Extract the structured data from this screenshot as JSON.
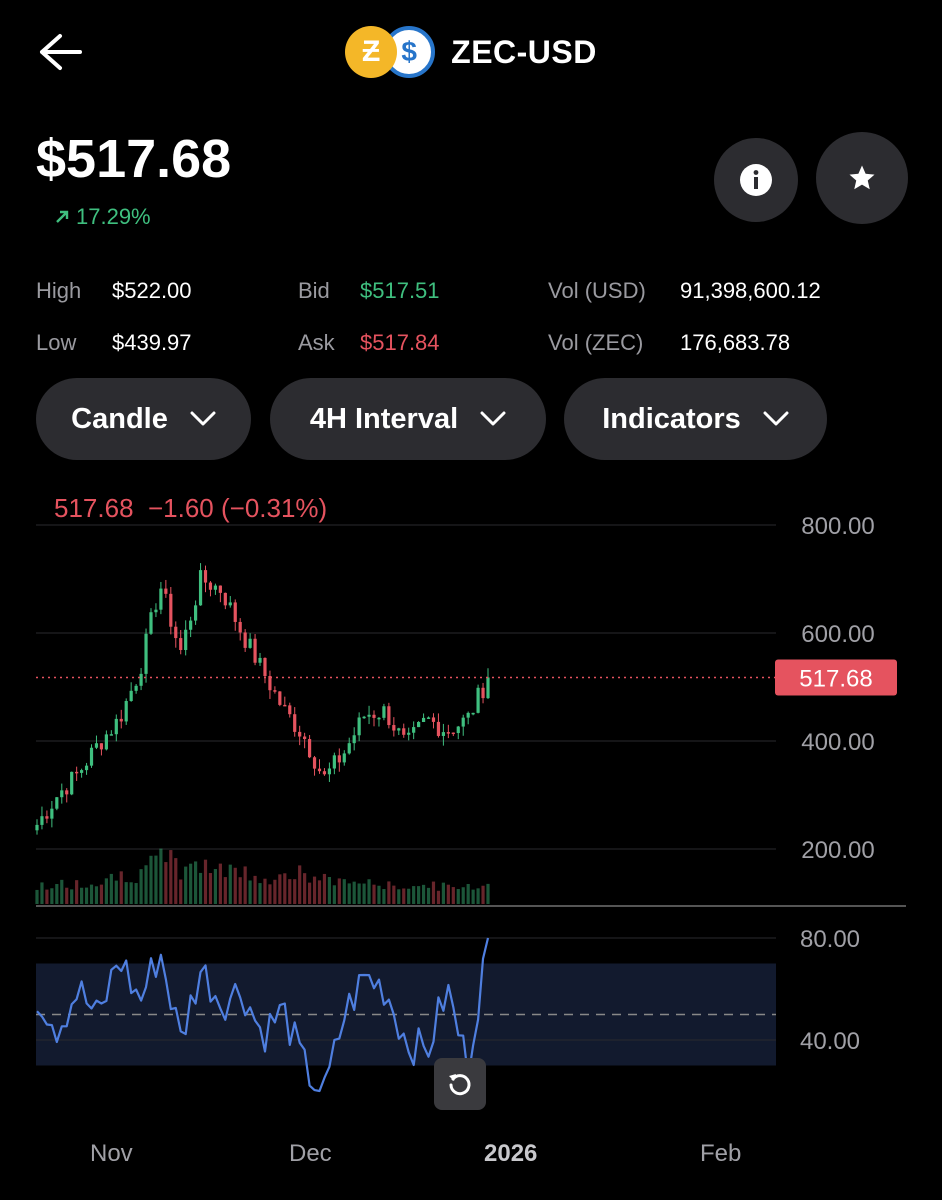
{
  "header": {
    "pair": "ZEC-USD",
    "back_icon": "arrow-left-icon",
    "zec_glyph": "Ƶ",
    "usd_glyph": "$"
  },
  "price": {
    "value": "$517.68",
    "change": "17.29%",
    "change_color": "#3fbf7f"
  },
  "actions": {
    "info_icon": "info-icon",
    "star_icon": "star-icon"
  },
  "stats": {
    "high_label": "High",
    "high": "$522.00",
    "low_label": "Low",
    "low": "$439.97",
    "bid_label": "Bid",
    "bid": "$517.51",
    "ask_label": "Ask",
    "ask": "$517.84",
    "vol_usd_label": "Vol (USD)",
    "vol_usd": "91,398,600.12",
    "vol_zec_label": "Vol (ZEC)",
    "vol_zec": "176,683.78"
  },
  "chips": {
    "chart_type": "Candle",
    "interval": "4H Interval",
    "indicators": "Indicators"
  },
  "chart": {
    "legend": "517.68  −1.60 (−0.31%)",
    "price_axis": [
      "800.00",
      "600.00",
      "400.00",
      "200.00"
    ],
    "current_tag": "517.68",
    "rsi_axis": [
      "80.00",
      "40.00"
    ],
    "months": [
      "Nov",
      "Dec",
      "2026",
      "Feb"
    ],
    "colors": {
      "up": "#3fbf7f",
      "down": "#e5535f",
      "rsi": "#4f7fe0",
      "tag": "#e5535f"
    }
  },
  "chart_data": {
    "type": "candlestick",
    "interval": "4H",
    "x": [
      "Oct 22",
      "Oct 25",
      "Oct 28",
      "Oct 31",
      "Nov 3",
      "Nov 6",
      "Nov 9",
      "Nov 12",
      "Nov 15",
      "Nov 18",
      "Nov 21",
      "Nov 24",
      "Nov 27",
      "Nov 30",
      "Dec 3",
      "Dec 6",
      "Dec 9",
      "Dec 12",
      "Dec 15",
      "Dec 18",
      "Dec 21",
      "Dec 24",
      "Dec 27"
    ],
    "close": [
      245,
      300,
      340,
      395,
      440,
      530,
      690,
      565,
      700,
      680,
      600,
      530,
      460,
      410,
      330,
      380,
      450,
      455,
      390,
      440,
      420,
      440,
      518
    ],
    "volume_relative": [
      0.3,
      0.35,
      0.4,
      0.5,
      0.6,
      0.8,
      0.9,
      0.7,
      0.85,
      0.7,
      0.6,
      0.5,
      0.6,
      0.5,
      0.45,
      0.4,
      0.35,
      0.3,
      0.3,
      0.3,
      0.25,
      0.3,
      0.4
    ],
    "rsi": [
      58,
      45,
      60,
      48,
      73,
      55,
      75,
      40,
      68,
      55,
      60,
      42,
      52,
      30,
      18,
      50,
      65,
      60,
      40,
      35,
      60,
      30,
      80
    ],
    "ylim": [
      230,
      800
    ],
    "rsi_ylim": [
      20,
      85
    ],
    "current_price": 517.68
  }
}
